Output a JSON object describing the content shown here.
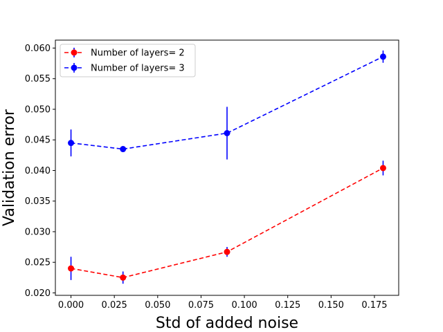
{
  "chart_data": {
    "type": "line",
    "title": "",
    "xlabel": "Std of added noise",
    "ylabel": "Validation error",
    "xlim": [
      -0.009,
      0.189
    ],
    "ylim": [
      0.0196,
      0.0613
    ],
    "x_ticks": [
      "0.000",
      "0.025",
      "0.050",
      "0.075",
      "0.100",
      "0.125",
      "0.150",
      "0.175"
    ],
    "x_tick_values": [
      0,
      0.025,
      0.05,
      0.075,
      0.1,
      0.125,
      0.15,
      0.175
    ],
    "y_ticks": [
      "0.020",
      "0.025",
      "0.030",
      "0.035",
      "0.040",
      "0.045",
      "0.050",
      "0.055",
      "0.060"
    ],
    "y_tick_values": [
      0.02,
      0.025,
      0.03,
      0.035,
      0.04,
      0.045,
      0.05,
      0.055,
      0.06
    ],
    "legend_position": "top-left",
    "grid": false,
    "series": [
      {
        "name": "Number of layers= 2",
        "color": "#ff0000",
        "errorbar_color": "#0000ff",
        "line_style": "dashed",
        "marker": "circle",
        "x": [
          0.0,
          0.03,
          0.09,
          0.18
        ],
        "y": [
          0.024,
          0.0225,
          0.0267,
          0.0404
        ],
        "yerr": [
          0.0019,
          0.001,
          0.0008,
          0.0012
        ]
      },
      {
        "name": "Number of layers= 3",
        "color": "#0000ff",
        "errorbar_color": "#0000ff",
        "line_style": "dashed",
        "marker": "circle",
        "x": [
          0.0,
          0.03,
          0.09,
          0.18
        ],
        "y": [
          0.0445,
          0.0435,
          0.0461,
          0.0586
        ],
        "yerr": [
          0.0022,
          0.0003,
          0.0043,
          0.001
        ]
      }
    ]
  }
}
